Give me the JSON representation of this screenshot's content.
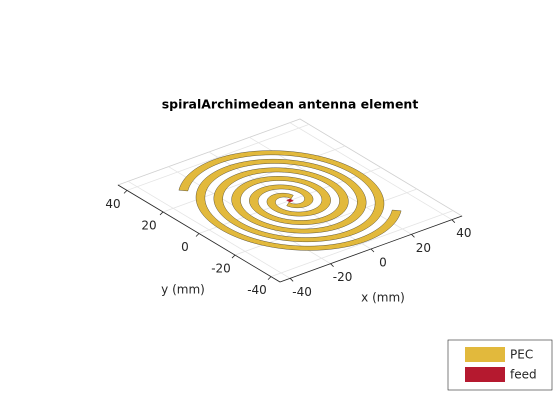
{
  "chart_data": {
    "type": "antenna",
    "title": "spiralArchimedean antenna element",
    "xlabel": "x (mm)",
    "ylabel": "y (mm)",
    "xlim": [
      -45,
      45
    ],
    "ylim": [
      -45,
      45
    ],
    "xticks": [
      -40,
      -20,
      0,
      20,
      40
    ],
    "yticks": [
      -40,
      -20,
      0,
      20,
      40
    ],
    "grid": true,
    "legend": "southeast",
    "layers": [
      {
        "name": "PEC",
        "color": "#e2b93c"
      },
      {
        "name": "feed",
        "color": "#b5192f"
      }
    ]
  }
}
